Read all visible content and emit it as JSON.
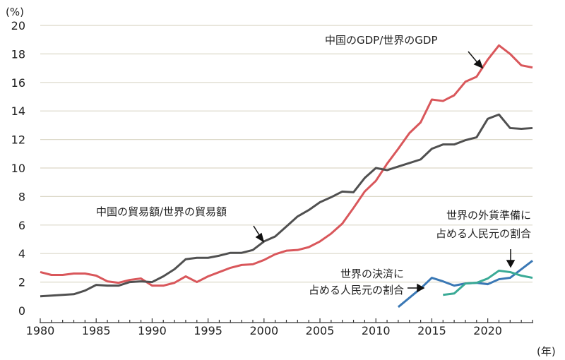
{
  "chart_data": {
    "type": "line",
    "y_unit_label": "(%)",
    "x_unit_label": "(年)",
    "xlim": [
      1980,
      2024
    ],
    "ylim": [
      0,
      20
    ],
    "grid": true,
    "x_ticks": [
      1980,
      1985,
      1990,
      1995,
      2000,
      2005,
      2010,
      2015,
      2020
    ],
    "y_ticks": [
      0,
      2,
      4,
      6,
      8,
      10,
      12,
      14,
      16,
      18,
      20
    ],
    "series": [
      {
        "name": "中国のGDP/世界のGDP",
        "color": "#d9575b",
        "start": 1980,
        "values": [
          2.7,
          2.5,
          2.5,
          2.6,
          2.6,
          2.45,
          2.05,
          1.95,
          2.15,
          2.25,
          1.75,
          1.75,
          1.95,
          2.4,
          2.0,
          2.4,
          2.7,
          3.0,
          3.2,
          3.25,
          3.55,
          3.95,
          4.2,
          4.25,
          4.45,
          4.85,
          5.4,
          6.1,
          7.2,
          8.35,
          9.1,
          10.3,
          11.35,
          12.45,
          13.2,
          14.8,
          14.7,
          15.1,
          16.05,
          16.4,
          17.6,
          18.6,
          18.0,
          17.2,
          17.05
        ]
      },
      {
        "name": "中国の貿易額/世界の貿易額",
        "color": "#505050",
        "start": 1980,
        "values": [
          1.0,
          1.05,
          1.1,
          1.15,
          1.4,
          1.8,
          1.75,
          1.75,
          2.0,
          2.05,
          2.0,
          2.4,
          2.9,
          3.6,
          3.7,
          3.7,
          3.85,
          4.05,
          4.05,
          4.25,
          4.85,
          5.2,
          5.9,
          6.6,
          7.05,
          7.6,
          7.95,
          8.35,
          8.3,
          9.3,
          10.0,
          9.85,
          10.1,
          10.35,
          10.6,
          11.35,
          11.65,
          11.65,
          11.95,
          12.15,
          13.45,
          13.75,
          12.8,
          12.75,
          12.8
        ]
      },
      {
        "name": "世界の決済に占める人民元の割合",
        "color": "#3a78b5",
        "start": 2012,
        "values": [
          0.25,
          0.9,
          1.55,
          2.3,
          2.05,
          1.75,
          1.9,
          1.95,
          1.85,
          2.2,
          2.3,
          2.9,
          3.5
        ]
      },
      {
        "name": "世界の外貨準備に占める人民元の割合",
        "color": "#3aaa96",
        "start": 2016,
        "values": [
          1.1,
          1.2,
          1.9,
          1.95,
          2.25,
          2.8,
          2.7,
          2.45,
          2.3
        ]
      }
    ],
    "annotations": {
      "gdp": "中国のGDP/世界のGDP",
      "trade": "中国の貿易額/世界の貿易額",
      "payments": [
        "世界の決済に",
        "占める人民元の割合"
      ],
      "reserves": [
        "世界の外貨準備に",
        "占める人民元の割合"
      ]
    }
  }
}
